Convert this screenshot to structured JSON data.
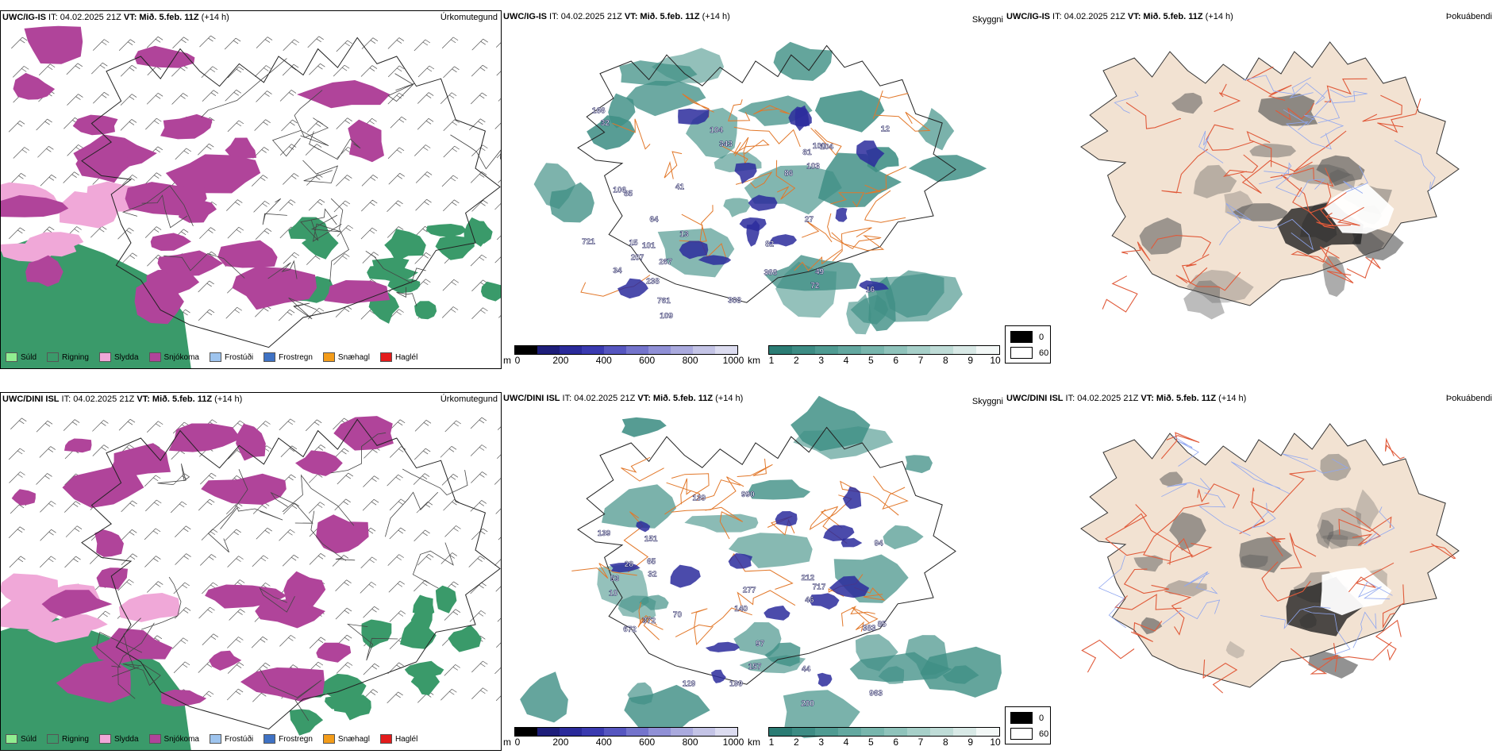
{
  "rows": [
    {
      "id": "ig",
      "precip": {
        "title_model": "UWC/IG-IS",
        "title_it": " IT: 04.02.2025 21Z ",
        "title_vt_label": "VT: ",
        "title_vt": "Mið. 5.feb. 11Z",
        "title_lead": " (+14 h)",
        "name": "Úrkomutegund"
      },
      "visibility": {
        "title_model": "UWC/IG-IS",
        "title_it": " IT: 04.02.2025 21Z ",
        "title_vt_label": "VT: ",
        "title_vt": "Mið. 5.feb. 11Z",
        "title_lead": " (+14 h)",
        "name": "Skyggni",
        "values": [
          "368",
          "41",
          "308",
          "12",
          "238",
          "207",
          "109",
          "49",
          "16",
          "27",
          "13",
          "15",
          "100",
          "101",
          "85",
          "86",
          "81",
          "64",
          "104",
          "267",
          "103",
          "343",
          "106",
          "166",
          "721",
          "82",
          "104",
          "72",
          "34",
          "761",
          "32"
        ]
      },
      "fog": {
        "title_model": "UWC/IG-IS",
        "title_it": " IT: 04.02.2025 21Z ",
        "title_vt_label": "VT: ",
        "title_vt": "Mið. 5.feb. 11Z",
        "title_lead": " (+14 h)",
        "name": "Þokuábendi"
      }
    },
    {
      "id": "dini",
      "precip": {
        "title_model": "UWC/DINI ISL",
        "title_it": " IT: 04.02.2025 21Z ",
        "title_vt_label": "VT: ",
        "title_vt": "Mið. 5.feb. 11Z",
        "title_lead": " (+14 h)",
        "name": "Úrkomutegund"
      },
      "visibility": {
        "title_model": "UWC/DINI ISL",
        "title_it": " IT: 04.02.2025 21Z ",
        "title_vt_label": "VT: ",
        "title_vt": "Mið. 5.feb. 11Z",
        "title_lead": " (+14 h)",
        "name": "Skyggni",
        "values": [
          "199",
          "990",
          "212",
          "717",
          "200",
          "157",
          "28",
          "672",
          "139",
          "963",
          "53",
          "140",
          "277",
          "383",
          "70",
          "65",
          "85",
          "10",
          "129",
          "97",
          "372",
          "32",
          "139",
          "94",
          "151",
          "46",
          "44"
        ]
      },
      "fog": {
        "title_model": "UWC/DINI ISL",
        "title_it": " IT: 04.02.2025 21Z ",
        "title_vt_label": "VT: ",
        "title_vt": "Mið. 5.feb. 11Z",
        "title_lead": " (+14 h)",
        "name": "Þokuábendi"
      }
    }
  ],
  "precip_legend": [
    {
      "label": "Súld",
      "color": "#90ee90"
    },
    {
      "label": "Rigning",
      "color": "#3a9a6a"
    },
    {
      "label": "Slydda",
      "color": "#f0a8d8"
    },
    {
      "label": "Snjókoma",
      "color": "#b0449a"
    },
    {
      "label": "Frostúði",
      "color": "#9ec4ee"
    },
    {
      "label": "Frostregn",
      "color": "#3f72c4"
    },
    {
      "label": "Snæhagl",
      "color": "#f39c1a"
    },
    {
      "label": "Haglél",
      "color": "#e31b1b"
    }
  ],
  "ceiling_bar": {
    "unit": "m",
    "ticks": [
      "0",
      "200",
      "400",
      "600",
      "800",
      "1000"
    ],
    "colors": [
      "#000000",
      "#1e1e7a",
      "#2a2a9a",
      "#3a3ab0",
      "#5656c0",
      "#7474cc",
      "#9090d6",
      "#aaaade",
      "#c4c4e6",
      "#dcdcf0"
    ]
  },
  "visibility_bar": {
    "unit": "km",
    "ticks": [
      "1",
      "2",
      "3",
      "4",
      "5",
      "6",
      "7",
      "8",
      "9",
      "10"
    ],
    "colors": [
      "#2b7c74",
      "#3d8c84",
      "#4f9b92",
      "#63a8a0",
      "#78b6ad",
      "#8fc3bb",
      "#a7d0c9",
      "#bfdcd7",
      "#d8e9e6",
      "#f3f8f7"
    ]
  },
  "fog_legend": {
    "top": "0",
    "bottom": "60",
    "top_color": "#000000",
    "bottom_color": "#ffffff"
  },
  "colors": {
    "rain": "#3a9a6a",
    "snow": "#b0449a",
    "sleet": "#f0a8d8",
    "ceiling": "#2b2b9c",
    "vis": "#3f8f85",
    "road": "#e2782a",
    "land": "#f2e2d2",
    "fogroad": "#e05a3a",
    "river": "#8fa6f0"
  }
}
